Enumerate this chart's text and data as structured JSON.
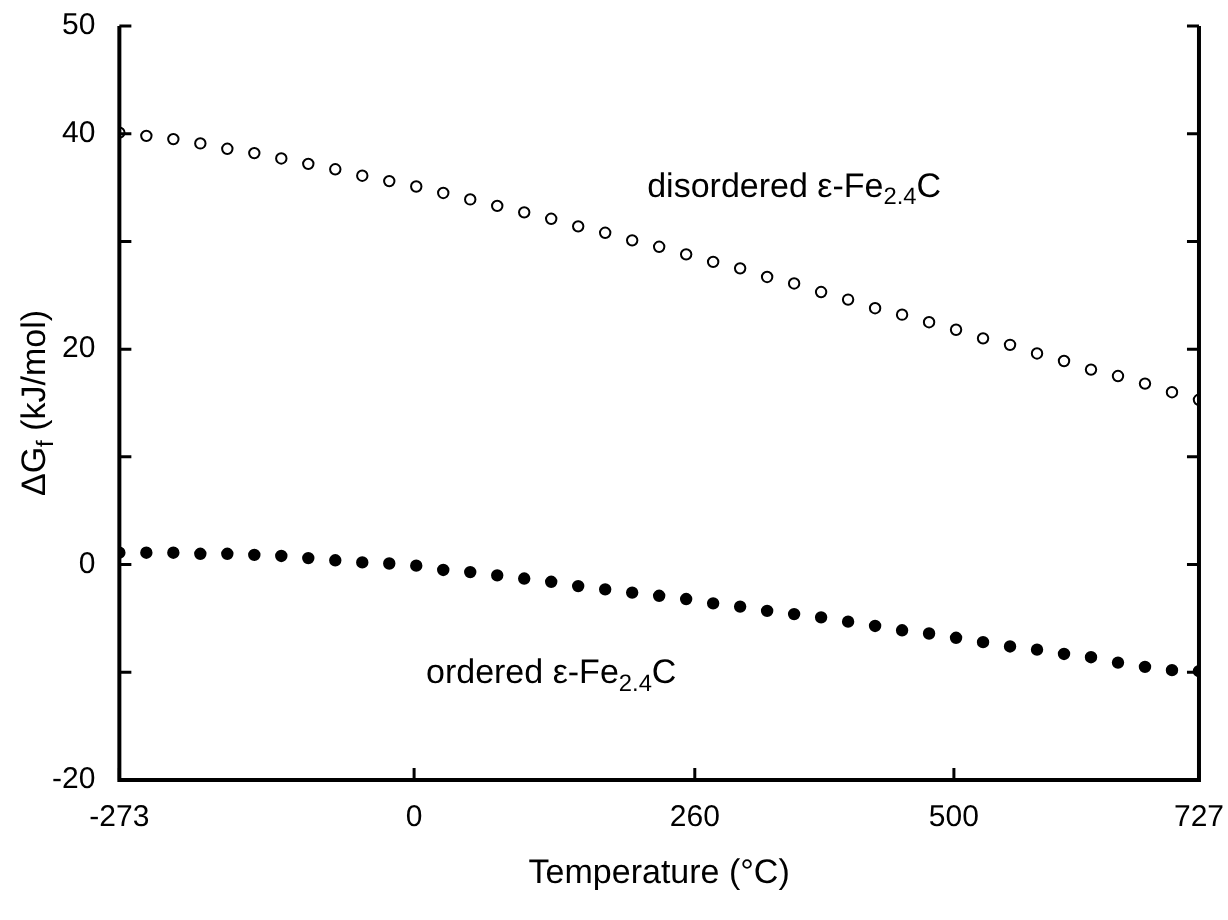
{
  "chart_data": {
    "type": "scatter",
    "xlabel": "Temperature (°C)",
    "ylabel": "ΔG$_{f}$ (kJ/mol)",
    "x": [
      -273,
      -248,
      -223,
      -198,
      -173,
      -148,
      -123,
      -98,
      -73,
      -48,
      -23,
      2,
      27,
      52,
      77,
      102,
      127,
      152,
      177,
      202,
      227,
      252,
      277,
      302,
      327,
      352,
      377,
      402,
      427,
      452,
      477,
      502,
      527,
      552,
      577,
      602,
      627,
      652,
      677,
      702,
      727
    ],
    "series": [
      {
        "name": "disordered ε-Fe$_{2.4}$C",
        "color": "#000000",
        "values": [
          40.1,
          39.8,
          39.5,
          39.1,
          38.6,
          38.2,
          37.7,
          37.2,
          36.7,
          36.1,
          35.6,
          35.1,
          34.5,
          33.9,
          33.3,
          32.7,
          32.1,
          31.4,
          30.8,
          30.1,
          29.5,
          28.8,
          28.1,
          27.5,
          26.7,
          26.1,
          25.3,
          24.6,
          23.8,
          23.2,
          22.5,
          21.8,
          21.0,
          20.4,
          19.6,
          18.9,
          18.1,
          17.5,
          16.8,
          16.0,
          15.3
        ]
      },
      {
        "name": "ordered ε-Fe$_{2.4}$C",
        "color": "#000000",
        "values": [
          1.1,
          1.1,
          1.1,
          1.0,
          1.0,
          0.9,
          0.8,
          0.6,
          0.4,
          0.2,
          0.1,
          -0.1,
          -0.5,
          -0.7,
          -1.0,
          -1.3,
          -1.6,
          -2.0,
          -2.3,
          -2.6,
          -2.9,
          -3.2,
          -3.6,
          -3.9,
          -4.3,
          -4.6,
          -4.9,
          -5.3,
          -5.7,
          -6.1,
          -6.4,
          -6.8,
          -7.2,
          -7.6,
          -7.9,
          -8.3,
          -8.6,
          -9.1,
          -9.5,
          -9.8,
          -9.9
        ]
      }
    ],
    "xlim": [
      -273,
      727
    ],
    "xticks": [
      -273,
      0,
      260,
      500,
      727
    ],
    "ylim": [
      -20,
      50
    ],
    "yticks": [
      -20,
      {
        "value": -10,
        "label": null
      },
      0,
      {
        "value": 10,
        "label": null
      },
      20,
      {
        "value": 30,
        "label": null
      },
      40,
      50
    ],
    "grid": false,
    "legend": false,
    "marker": "circle"
  }
}
